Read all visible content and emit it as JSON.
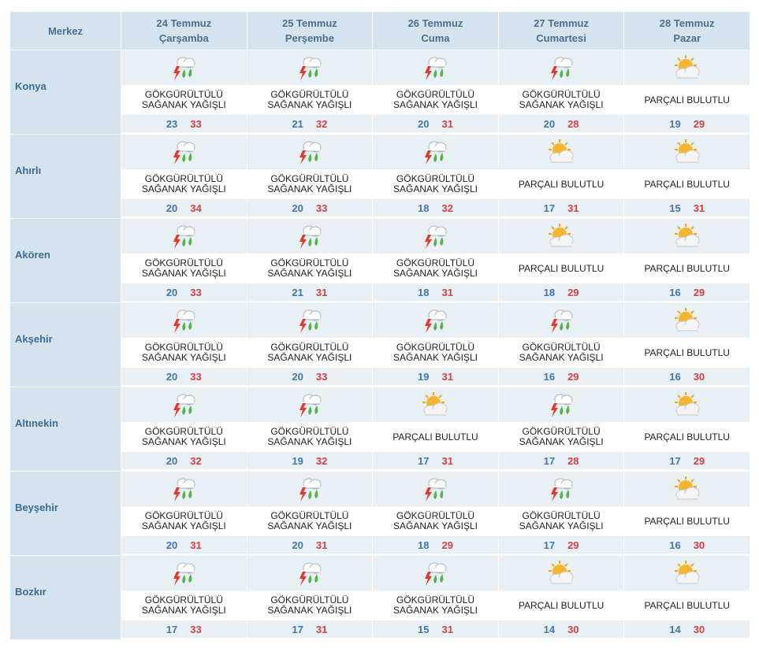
{
  "header": {
    "station_label": "Merkez",
    "days": [
      {
        "date": "24 Temmuz",
        "weekday": "Çarşamba"
      },
      {
        "date": "25 Temmuz",
        "weekday": "Perşembe"
      },
      {
        "date": "26 Temmuz",
        "weekday": "Cuma"
      },
      {
        "date": "27 Temmuz",
        "weekday": "Cumartesi"
      },
      {
        "date": "28 Temmuz",
        "weekday": "Pazar"
      }
    ]
  },
  "conditions": {
    "storm": {
      "text": "GÖKGÜRÜLTÜLÜ\nSAĞANAK YAĞIŞLI",
      "icon": "thunderstorm-rain-icon"
    },
    "partly": {
      "text": "PARÇALI BULUTLU",
      "icon": "partly-cloudy-icon"
    }
  },
  "colors": {
    "header_bg": "#d5e3ee",
    "band_bg": "#e8eff5",
    "min_temp": "#3d78b3",
    "max_temp": "#d64040"
  },
  "rows": [
    {
      "city": "Konya",
      "days": [
        {
          "cond": "storm",
          "min": "23",
          "max": "33"
        },
        {
          "cond": "storm",
          "min": "21",
          "max": "32"
        },
        {
          "cond": "storm",
          "min": "20",
          "max": "31"
        },
        {
          "cond": "storm",
          "min": "20",
          "max": "28"
        },
        {
          "cond": "partly",
          "min": "19",
          "max": "29"
        }
      ]
    },
    {
      "city": "Ahırlı",
      "days": [
        {
          "cond": "storm",
          "min": "20",
          "max": "34"
        },
        {
          "cond": "storm",
          "min": "20",
          "max": "33"
        },
        {
          "cond": "storm",
          "min": "18",
          "max": "32"
        },
        {
          "cond": "partly",
          "min": "17",
          "max": "31"
        },
        {
          "cond": "partly",
          "min": "15",
          "max": "31"
        }
      ]
    },
    {
      "city": "Akören",
      "days": [
        {
          "cond": "storm",
          "min": "20",
          "max": "33"
        },
        {
          "cond": "storm",
          "min": "21",
          "max": "31"
        },
        {
          "cond": "storm",
          "min": "18",
          "max": "31"
        },
        {
          "cond": "partly",
          "min": "18",
          "max": "29"
        },
        {
          "cond": "partly",
          "min": "16",
          "max": "29"
        }
      ]
    },
    {
      "city": "Akşehir",
      "days": [
        {
          "cond": "storm",
          "min": "20",
          "max": "33"
        },
        {
          "cond": "storm",
          "min": "20",
          "max": "33"
        },
        {
          "cond": "storm",
          "min": "19",
          "max": "31"
        },
        {
          "cond": "storm",
          "min": "16",
          "max": "29"
        },
        {
          "cond": "partly",
          "min": "16",
          "max": "30"
        }
      ]
    },
    {
      "city": "Altınekin",
      "days": [
        {
          "cond": "storm",
          "min": "20",
          "max": "32"
        },
        {
          "cond": "storm",
          "min": "19",
          "max": "32"
        },
        {
          "cond": "partly",
          "min": "17",
          "max": "31"
        },
        {
          "cond": "storm",
          "min": "17",
          "max": "28"
        },
        {
          "cond": "partly",
          "min": "17",
          "max": "29"
        }
      ]
    },
    {
      "city": "Beyşehir",
      "days": [
        {
          "cond": "storm",
          "min": "20",
          "max": "31"
        },
        {
          "cond": "storm",
          "min": "20",
          "max": "31"
        },
        {
          "cond": "storm",
          "min": "18",
          "max": "29"
        },
        {
          "cond": "storm",
          "min": "17",
          "max": "29"
        },
        {
          "cond": "partly",
          "min": "16",
          "max": "30"
        }
      ]
    },
    {
      "city": "Bozkır",
      "days": [
        {
          "cond": "storm",
          "min": "17",
          "max": "33"
        },
        {
          "cond": "storm",
          "min": "17",
          "max": "31"
        },
        {
          "cond": "storm",
          "min": "15",
          "max": "31"
        },
        {
          "cond": "partly",
          "min": "14",
          "max": "30"
        },
        {
          "cond": "partly",
          "min": "14",
          "max": "30"
        }
      ]
    }
  ]
}
